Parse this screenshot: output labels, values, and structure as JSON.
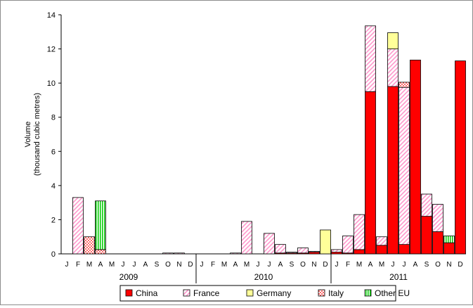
{
  "chart_data": {
    "type": "bar",
    "stacked": true,
    "ylabel": "Volume\n(thousand cubic metres)",
    "xlabel": "",
    "ylim": [
      0,
      14
    ],
    "yticks": [
      "0",
      "2",
      "4",
      "6",
      "8",
      "10",
      "12",
      "14"
    ],
    "grid": false,
    "legend_position": "bottom",
    "categories": [
      "J",
      "F",
      "M",
      "A",
      "M",
      "J",
      "J",
      "A",
      "S",
      "O",
      "N",
      "D",
      "J",
      "F",
      "M",
      "A",
      "M",
      "J",
      "J",
      "A",
      "S",
      "O",
      "N",
      "D",
      "J",
      "F",
      "M",
      "A",
      "M",
      "J",
      "J",
      "A",
      "S",
      "O",
      "N",
      "D"
    ],
    "year_groups": [
      {
        "label": "2009",
        "start": 0,
        "count": 12
      },
      {
        "label": "2010",
        "start": 12,
        "count": 12
      },
      {
        "label": "2011",
        "start": 24,
        "count": 12
      }
    ],
    "series": [
      {
        "name": "China",
        "color": "#ff0000",
        "pattern": "solid",
        "values": [
          0,
          0,
          0,
          0,
          0,
          0,
          0,
          0,
          0,
          0,
          0,
          0,
          0,
          0,
          0,
          0,
          0,
          0,
          0,
          0.05,
          0.05,
          0.05,
          0.1,
          0,
          0.1,
          0.05,
          0.25,
          9.5,
          0.5,
          9.8,
          0.55,
          11.35,
          2.2,
          1.3,
          0.65,
          11.3
        ]
      },
      {
        "name": "France",
        "color": "#ff99cc",
        "pattern": "diagonal",
        "values": [
          0,
          3.3,
          0,
          0,
          0,
          0,
          0,
          0,
          0,
          0.05,
          0.05,
          0,
          0,
          0,
          0,
          0.05,
          1.9,
          0,
          1.2,
          0.5,
          0.05,
          0.3,
          0.05,
          0,
          0.15,
          1.0,
          2.05,
          3.85,
          0.5,
          2.2,
          9.2,
          0,
          1.3,
          1.6,
          0,
          0
        ]
      },
      {
        "name": "Germany",
        "color": "#ffff99",
        "pattern": "solid",
        "values": [
          0,
          0,
          0,
          0,
          0,
          0,
          0,
          0,
          0,
          0,
          0,
          0,
          0,
          0,
          0,
          0,
          0,
          0,
          0,
          0,
          0,
          0,
          0,
          1.4,
          0,
          0,
          0,
          0,
          0,
          0.95,
          0,
          0,
          0,
          0,
          0,
          0
        ]
      },
      {
        "name": "Italy",
        "color": "#ff0000",
        "pattern": "dots",
        "values": [
          0,
          0,
          1.0,
          0.25,
          0,
          0,
          0,
          0,
          0,
          0,
          0,
          0,
          0,
          0,
          0,
          0,
          0,
          0,
          0,
          0,
          0,
          0,
          0,
          0,
          0,
          0,
          0,
          0,
          0,
          0,
          0.3,
          0,
          0,
          0,
          0,
          0
        ]
      },
      {
        "name": "Other EU",
        "color": "#00cc00",
        "pattern": "vertical",
        "values": [
          0,
          0,
          0,
          2.85,
          0,
          0,
          0,
          0,
          0,
          0,
          0,
          0,
          0,
          0,
          0,
          0,
          0,
          0,
          0,
          0,
          0,
          0,
          0,
          0,
          0,
          0,
          0,
          0,
          0,
          0,
          0,
          0,
          0,
          0,
          0.4,
          0
        ]
      }
    ]
  }
}
